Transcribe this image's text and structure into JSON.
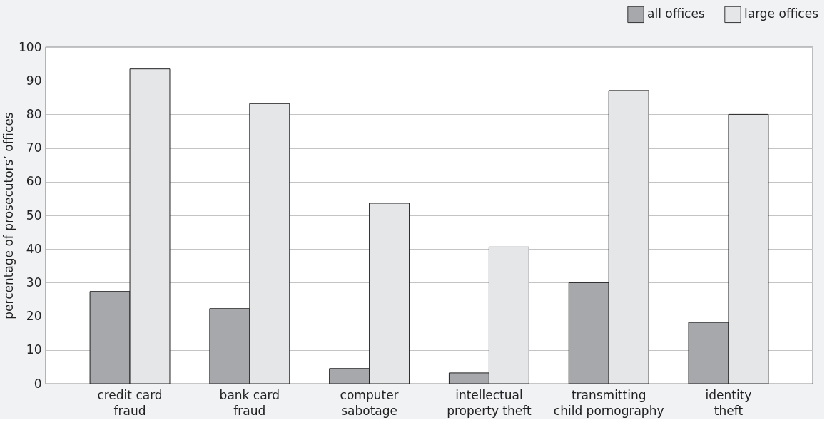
{
  "chart_data": {
    "type": "bar",
    "ylabel": "percentage of prosecutors’ offices",
    "categories": [
      "credit card\nfraud",
      "bank card\nfraud",
      "computer\nsabotage",
      "intellectual\nproperty theft",
      "transmitting\nchild pornography",
      "identity\ntheft"
    ],
    "series": [
      {
        "name": "all offices",
        "color": "#a7a8ab",
        "values": [
          27.4,
          22.3,
          4.5,
          3.2,
          30.0,
          18.2
        ]
      },
      {
        "name": "large offices",
        "color": "#e5e6e8",
        "values": [
          93.5,
          83.2,
          53.6,
          40.6,
          87.1,
          80
        ]
      }
    ],
    "ylim": [
      0,
      100
    ],
    "yticks": [
      0,
      10,
      20,
      30,
      40,
      50,
      60,
      70,
      80,
      90,
      100
    ],
    "grid": "y",
    "legend": "top right"
  }
}
